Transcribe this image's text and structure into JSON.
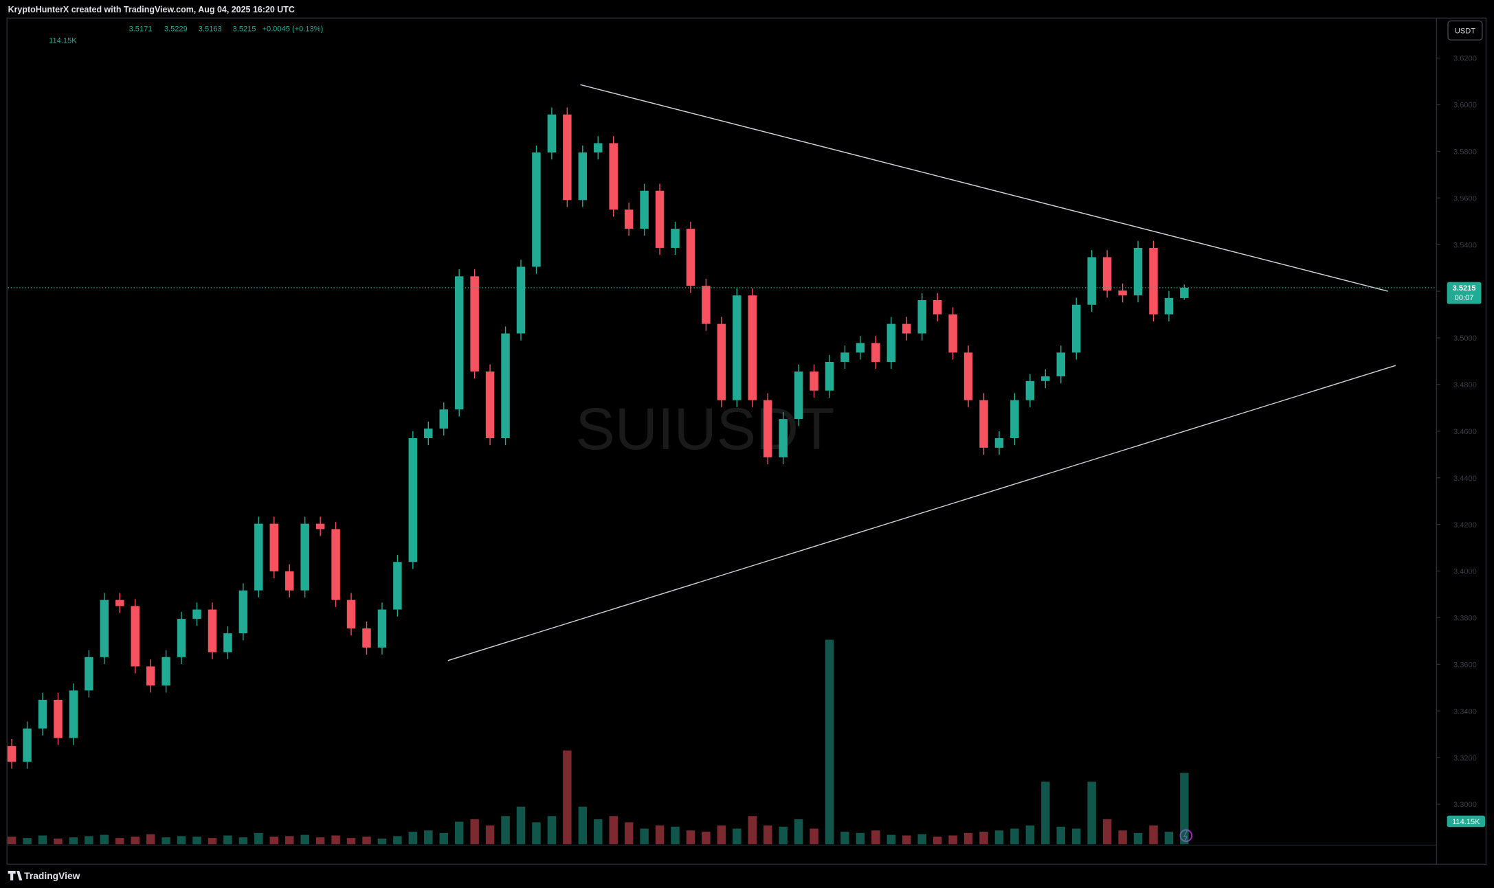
{
  "header": {
    "author_line": "KryptoHunterX created with TradingView.com, Aug 04, 2025 16:20 UTC",
    "currency": "USDT",
    "change": "+0.0045 (+0.13%)",
    "countdown": "00:07",
    "watermark": "SUIUSDT",
    "brand": "TradingView"
  },
  "chart_data": {
    "type": "candlestick",
    "open": [
      3.325,
      3.3182,
      3.3325,
      3.3448,
      3.3284,
      3.3488,
      3.3631,
      3.3876,
      3.385,
      3.3591,
      3.3509,
      3.3631,
      3.3795,
      3.3835,
      3.3652,
      3.3733,
      3.3917,
      3.4203,
      3.3999,
      3.3917,
      3.4203,
      3.418,
      3.3876,
      3.3754,
      3.3672,
      3.3835,
      3.4039,
      3.457,
      3.4611,
      3.4693,
      3.5264,
      3.4856,
      3.457,
      3.5019,
      3.5305,
      3.5795,
      3.5958,
      3.5591,
      3.5795,
      3.5835,
      3.555,
      3.5468,
      3.5631,
      3.5386,
      3.5468,
      3.5223,
      3.506,
      3.4733,
      3.5182,
      3.4733,
      3.4488,
      3.4652,
      3.4856,
      3.4774,
      3.4897,
      3.4937,
      3.4978,
      3.4897,
      3.506,
      3.5019,
      3.5162,
      3.5101,
      3.4937,
      3.4733,
      3.4529,
      3.457,
      3.4733,
      3.4815,
      3.4835,
      3.4937,
      3.5142,
      3.5346,
      3.5203,
      3.5182,
      3.5386,
      3.5101,
      3.5171
    ],
    "high": [
      3.328,
      3.3355,
      3.3478,
      3.3478,
      3.3518,
      3.3661,
      3.3906,
      3.3906,
      3.388,
      3.3621,
      3.3661,
      3.3825,
      3.3865,
      3.3865,
      3.3763,
      3.3947,
      3.4233,
      3.4233,
      3.4029,
      3.4233,
      3.4233,
      3.421,
      3.3906,
      3.3784,
      3.3865,
      3.4069,
      3.46,
      3.4641,
      3.4723,
      3.5294,
      3.5294,
      3.4886,
      3.5049,
      3.5335,
      3.5825,
      3.5988,
      3.5988,
      3.5825,
      3.5865,
      3.5865,
      3.558,
      3.5661,
      3.5661,
      3.5498,
      3.5498,
      3.5253,
      3.509,
      3.5212,
      3.5212,
      3.4763,
      3.4682,
      3.4886,
      3.4886,
      3.4927,
      3.4967,
      3.5008,
      3.5008,
      3.509,
      3.509,
      3.5192,
      3.5192,
      3.5131,
      3.4967,
      3.4763,
      3.46,
      3.4763,
      3.4845,
      3.4865,
      3.4967,
      3.5172,
      3.5376,
      3.5376,
      3.5233,
      3.5416,
      3.5416,
      3.5201,
      3.5229
    ],
    "low": [
      3.3152,
      3.3152,
      3.3295,
      3.3254,
      3.3254,
      3.3458,
      3.3601,
      3.382,
      3.3561,
      3.3479,
      3.3479,
      3.3601,
      3.3765,
      3.3622,
      3.3622,
      3.3703,
      3.3887,
      3.3969,
      3.3887,
      3.3887,
      3.415,
      3.3846,
      3.3724,
      3.3642,
      3.3642,
      3.3805,
      3.4009,
      3.454,
      3.4581,
      3.4663,
      3.4826,
      3.454,
      3.454,
      3.4989,
      3.5275,
      3.5765,
      3.5561,
      3.5561,
      3.5765,
      3.552,
      3.5438,
      3.5438,
      3.5356,
      3.5356,
      3.5193,
      3.503,
      3.4703,
      3.4703,
      3.4703,
      3.4458,
      3.4458,
      3.4622,
      3.4744,
      3.4744,
      3.4867,
      3.4907,
      3.4867,
      3.4867,
      3.4989,
      3.4989,
      3.5071,
      3.4907,
      3.4703,
      3.4499,
      3.4499,
      3.454,
      3.4703,
      3.4785,
      3.4805,
      3.4907,
      3.5112,
      3.5173,
      3.5152,
      3.5152,
      3.5071,
      3.5071,
      3.5163
    ],
    "close": [
      3.3182,
      3.3325,
      3.3448,
      3.3284,
      3.3488,
      3.3631,
      3.3876,
      3.385,
      3.3591,
      3.3509,
      3.3631,
      3.3795,
      3.3835,
      3.3652,
      3.3733,
      3.3917,
      3.4203,
      3.3999,
      3.3917,
      3.4203,
      3.418,
      3.3876,
      3.3754,
      3.3672,
      3.3835,
      3.4039,
      3.457,
      3.4611,
      3.4693,
      3.5264,
      3.4856,
      3.457,
      3.5019,
      3.5305,
      3.5795,
      3.5958,
      3.5591,
      3.5795,
      3.5835,
      3.555,
      3.5468,
      3.5631,
      3.5386,
      3.5468,
      3.5223,
      3.506,
      3.4733,
      3.5182,
      3.4733,
      3.4488,
      3.4652,
      3.4856,
      3.4774,
      3.4897,
      3.4937,
      3.4978,
      3.4897,
      3.506,
      3.5019,
      3.5162,
      3.5101,
      3.4937,
      3.4733,
      3.4529,
      3.457,
      3.4733,
      3.4815,
      3.4835,
      3.4937,
      3.5142,
      3.5346,
      3.5203,
      3.5182,
      3.5386,
      3.5101,
      3.5171,
      3.5215
    ],
    "volume": [
      12,
      10,
      14,
      9,
      11,
      13,
      15,
      10,
      12,
      16,
      11,
      13,
      12,
      10,
      14,
      11,
      18,
      12,
      13,
      15,
      11,
      14,
      10,
      12,
      9,
      13,
      20,
      22,
      18,
      36,
      40,
      30,
      45,
      60,
      35,
      45,
      150,
      60,
      40,
      45,
      35,
      25,
      30,
      28,
      22,
      20,
      30,
      25,
      45,
      30,
      28,
      40,
      25,
      327,
      20,
      18,
      22,
      15,
      14,
      16,
      12,
      14,
      18,
      20,
      22,
      25,
      30,
      100,
      28,
      25,
      100,
      40,
      22,
      18,
      30,
      20,
      114.15
    ],
    "last_volume_label": "114.15K",
    "up_color": "#22ab94",
    "down_color": "#f7525f",
    "ylim": [
      3.28,
      3.64
    ],
    "yticks": [
      {
        "value": 3.3,
        "label": "3.3000"
      },
      {
        "value": 3.32,
        "label": "3.3200"
      },
      {
        "value": 3.34,
        "label": "3.3400"
      },
      {
        "value": 3.36,
        "label": "3.3600"
      },
      {
        "value": 3.38,
        "label": "3.3800"
      },
      {
        "value": 3.4,
        "label": "3.4000"
      },
      {
        "value": 3.42,
        "label": "3.4200"
      },
      {
        "value": 3.44,
        "label": "3.4400"
      },
      {
        "value": 3.46,
        "label": "3.4600"
      },
      {
        "value": 3.48,
        "label": "3.4800"
      },
      {
        "value": 3.5,
        "label": "3.5000"
      },
      {
        "value": 3.52,
        "label": "3.5200"
      },
      {
        "value": 3.54,
        "label": "3.5400"
      },
      {
        "value": 3.56,
        "label": "3.5600"
      },
      {
        "value": 3.58,
        "label": "3.5800"
      },
      {
        "value": 3.6,
        "label": "3.6000"
      },
      {
        "value": 3.62,
        "label": "3.6200"
      }
    ]
  }
}
